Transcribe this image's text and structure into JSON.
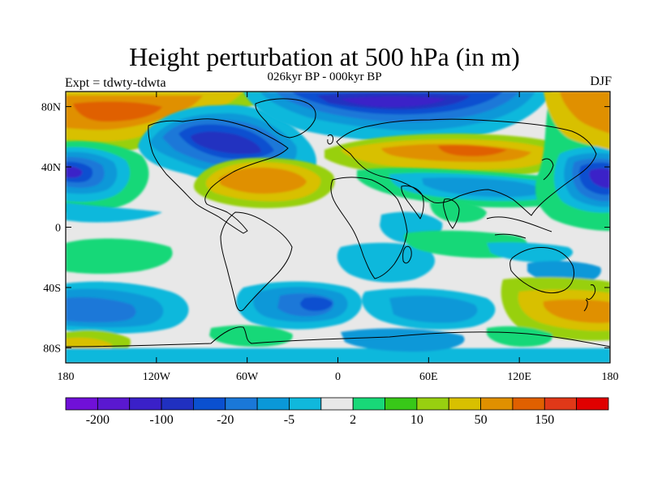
{
  "title": "Height perturbation at 500 hPa (in m)",
  "subtitle": "026kyr BP - 000kyr BP",
  "left_string": "Expt = tdwty-tdwta",
  "right_string": "DJF",
  "map": {
    "lon_range": [
      -180,
      180
    ],
    "lat_range": [
      -90,
      90
    ],
    "lat_ticks": [
      {
        "value": 80,
        "label": "80N"
      },
      {
        "value": 40,
        "label": "40N"
      },
      {
        "value": 0,
        "label": "0"
      },
      {
        "value": -40,
        "label": "40S"
      },
      {
        "value": -80,
        "label": "80S"
      }
    ],
    "lon_ticks": [
      {
        "value": -180,
        "label": "180"
      },
      {
        "value": -120,
        "label": "120W"
      },
      {
        "value": -60,
        "label": "60W"
      },
      {
        "value": 0,
        "label": "0"
      },
      {
        "value": 60,
        "label": "60E"
      },
      {
        "value": 120,
        "label": "120E"
      },
      {
        "value": 180,
        "label": "180"
      }
    ],
    "neutral_color": "#e8e8e8"
  },
  "colorbar": {
    "colors": [
      "#7010d8",
      "#5a18d0",
      "#3a20c8",
      "#2030c0",
      "#0a50d0",
      "#1a78d8",
      "#0a98d8",
      "#10b8dc",
      "#e8e8e8",
      "#18d878",
      "#38c818",
      "#98d010",
      "#d8c000",
      "#e09000",
      "#e06000",
      "#e03818",
      "#e00000"
    ],
    "labels": [
      {
        "after_box": 1,
        "text": "-200"
      },
      {
        "after_box": 3,
        "text": "-100"
      },
      {
        "after_box": 5,
        "text": "-20"
      },
      {
        "after_box": 7,
        "text": "-5"
      },
      {
        "after_box": 9,
        "text": "2"
      },
      {
        "after_box": 11,
        "text": "10"
      },
      {
        "after_box": 13,
        "text": "50"
      },
      {
        "after_box": 15,
        "text": "150"
      }
    ]
  }
}
